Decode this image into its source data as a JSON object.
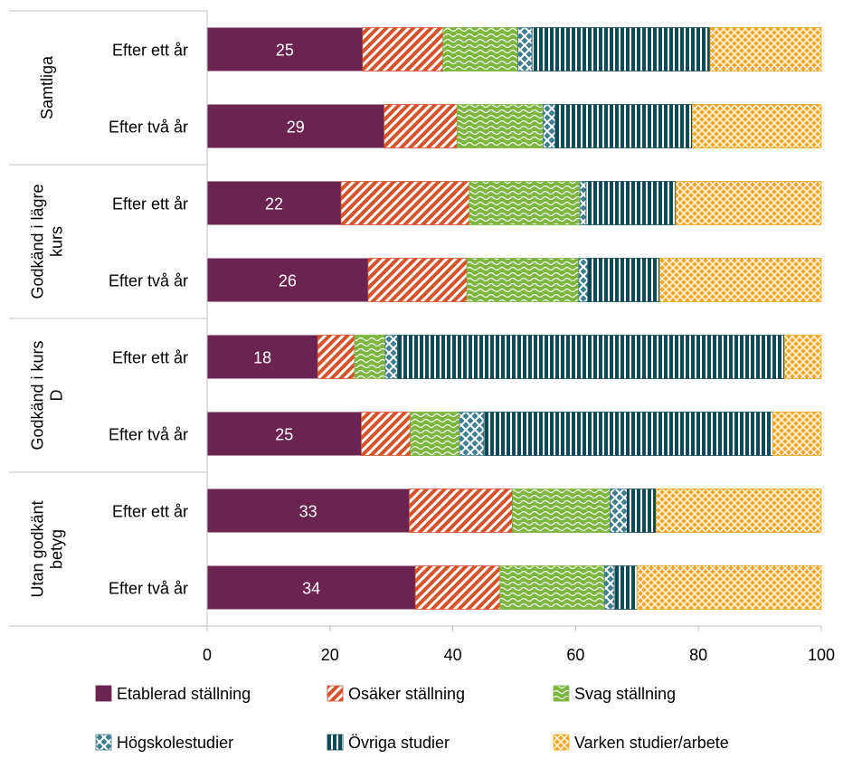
{
  "chart_data": {
    "type": "bar",
    "orientation": "horizontal",
    "stacked": true,
    "title": "",
    "xlabel": "",
    "ylabel": "",
    "xlim": [
      0,
      100
    ],
    "xticks": [
      "0",
      "20",
      "40",
      "60",
      "80",
      "100"
    ],
    "grid": false,
    "legend_position": "bottom",
    "groups": [
      {
        "label": "Samtliga",
        "rows": [
          "Efter ett år",
          "Efter två år"
        ]
      },
      {
        "label": "Godkänd i lägre kurs",
        "rows": [
          "Efter ett år",
          "Efter två år"
        ]
      },
      {
        "label": "Godkänd i kurs D",
        "rows": [
          "Efter ett år",
          "Efter två år"
        ]
      },
      {
        "label": "Utan godkänt betyg",
        "rows": [
          "Efter ett år",
          "Efter två år"
        ]
      }
    ],
    "series": [
      {
        "name": "Etablerad ställning",
        "color": "#6b2352",
        "pattern": "solid",
        "values": [
          25.3,
          28.8,
          21.8,
          26.2,
          18.0,
          25.1,
          32.9,
          33.9
        ]
      },
      {
        "name": "Osäker ställning",
        "color": "#d4532a",
        "pattern": "diagonal-stripes",
        "values": [
          13.1,
          11.9,
          20.9,
          16.1,
          6.0,
          8.0,
          16.8,
          13.8
        ]
      },
      {
        "name": "Svag ställning",
        "color": "#7cb63e",
        "pattern": "wave",
        "values": [
          12.2,
          14.0,
          18.0,
          18.2,
          5.0,
          8.0,
          15.9,
          17.0
        ]
      },
      {
        "name": "Högskolestudier",
        "color": "#3f7e8e",
        "pattern": "lattice",
        "values": [
          2.3,
          2.0,
          1.0,
          1.5,
          2.0,
          4.0,
          2.8,
          1.6
        ]
      },
      {
        "name": "Övriga studier",
        "color": "#0f4a56",
        "pattern": "vertical-stripes",
        "values": [
          29.0,
          22.3,
          14.6,
          11.7,
          63.0,
          47.0,
          4.7,
          3.7
        ]
      },
      {
        "name": "Varken studier/arbete",
        "color": "#f5a623",
        "pattern": "crosshatch",
        "values": [
          18.1,
          21.0,
          23.7,
          26.3,
          6.0,
          7.9,
          26.9,
          30.0
        ]
      }
    ],
    "data_labels": [
      "25",
      "29",
      "22",
      "26",
      "18",
      "25",
      "33",
      "34"
    ]
  }
}
